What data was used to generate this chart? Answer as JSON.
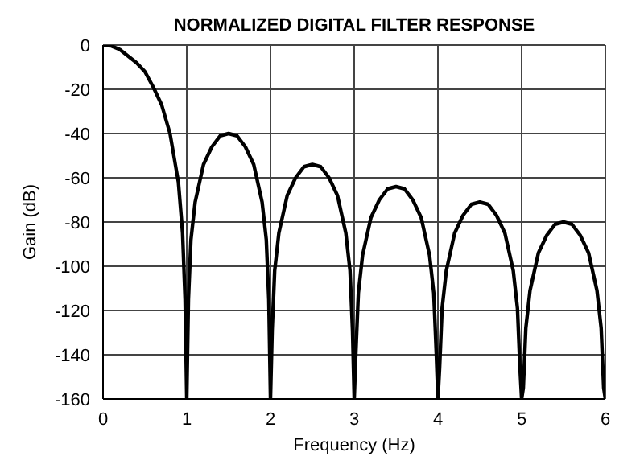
{
  "chart_data": {
    "type": "line",
    "title": "NORMALIZED DIGITAL FILTER RESPONSE",
    "xlabel": "Frequency (Hz)",
    "ylabel": "Gain (dB)",
    "x": [
      0,
      0.1,
      0.2,
      0.3,
      0.4,
      0.5,
      0.6,
      0.7,
      0.8,
      0.9,
      0.95,
      0.98,
      1,
      1.02,
      1.05,
      1.1,
      1.2,
      1.3,
      1.4,
      1.5,
      1.6,
      1.7,
      1.8,
      1.9,
      1.95,
      1.98,
      2,
      2.02,
      2.05,
      2.1,
      2.2,
      2.3,
      2.4,
      2.5,
      2.6,
      2.7,
      2.8,
      2.9,
      2.95,
      2.98,
      3,
      3.02,
      3.05,
      3.1,
      3.2,
      3.3,
      3.4,
      3.5,
      3.6,
      3.7,
      3.8,
      3.9,
      3.95,
      3.98,
      4,
      4.02,
      4.05,
      4.1,
      4.2,
      4.3,
      4.4,
      4.5,
      4.6,
      4.7,
      4.8,
      4.9,
      4.95,
      4.98,
      5,
      5.02,
      5.05,
      5.1,
      5.2,
      5.3,
      5.4,
      5.5,
      5.6,
      5.7,
      5.8,
      5.9,
      5.95,
      5.98,
      6
    ],
    "series": [
      {
        "color": "#000000",
        "values": [
          0,
          -0.4,
          -2,
          -5,
          -8,
          -12,
          -19,
          -27,
          -40,
          -62,
          -85,
          -115,
          -160,
          -115,
          -88,
          -71,
          -54,
          -46,
          -41,
          -40,
          -41,
          -46,
          -54,
          -71,
          -88,
          -115,
          -160,
          -129,
          -102,
          -85,
          -68,
          -60,
          -55,
          -54,
          -55,
          -60,
          -68,
          -85,
          -102,
          -129,
          -160,
          -139,
          -112,
          -95,
          -78,
          -70,
          -65,
          -64,
          -65,
          -70,
          -78,
          -95,
          -112,
          -139,
          -160,
          -146,
          -119,
          -102,
          -85,
          -77,
          -72,
          -71,
          -72,
          -77,
          -85,
          -102,
          -119,
          -146,
          -160,
          -155,
          -128,
          -111,
          -94,
          -86,
          -81,
          -80,
          -81,
          -86,
          -94,
          -111,
          -128,
          -155,
          -160
        ]
      }
    ],
    "xlim": [
      0,
      6
    ],
    "xticks": [
      0,
      1,
      2,
      3,
      4,
      5,
      6
    ],
    "ylim": [
      -160,
      0
    ],
    "yticks": [
      -160,
      -140,
      -120,
      -100,
      -80,
      -60,
      -40,
      -20,
      0
    ],
    "grid": true,
    "legend": false,
    "marker": "none",
    "line_style": "solid"
  }
}
